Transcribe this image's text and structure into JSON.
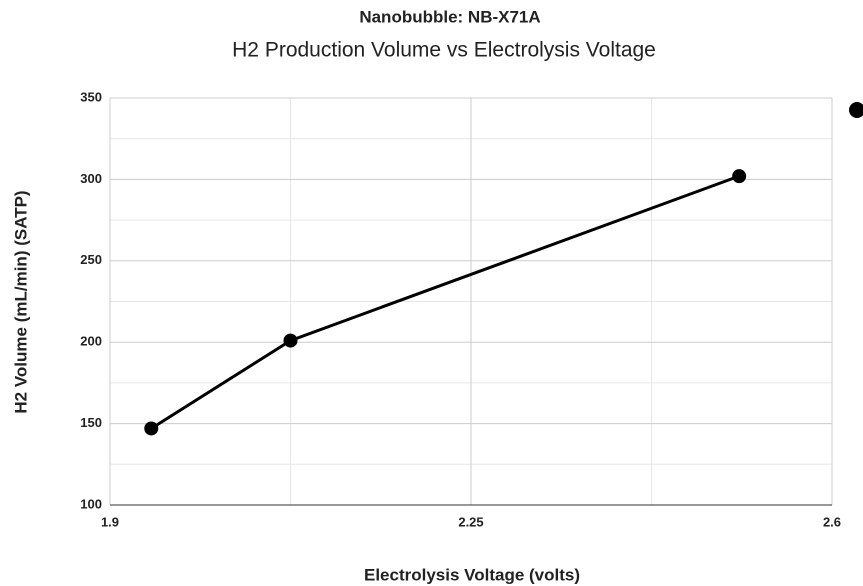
{
  "chart_data": {
    "type": "line",
    "title": "Nanobubble: NB-X71A",
    "subtitle": "H2 Production Volume vs Electrolysis Voltage",
    "x_label": "Electrolysis Voltage (volts)",
    "y_label": "H2 Volume (mL/min) (SATP)",
    "x": [
      1.94,
      2.075,
      2.51
    ],
    "series": [
      {
        "color": "#000000",
        "values": [
          147,
          201,
          302
        ]
      }
    ],
    "xlim": [
      1.9,
      2.6
    ],
    "xticks": [
      1.9,
      2.25,
      2.6
    ],
    "x_minor_ticks": [
      2.075,
      2.425
    ],
    "ylim": [
      100,
      350
    ],
    "yticks": [
      100,
      150,
      200,
      250,
      300,
      350
    ],
    "y_minor_ticks": [
      125,
      175,
      225,
      275,
      325
    ],
    "grid": true,
    "markers": true
  }
}
